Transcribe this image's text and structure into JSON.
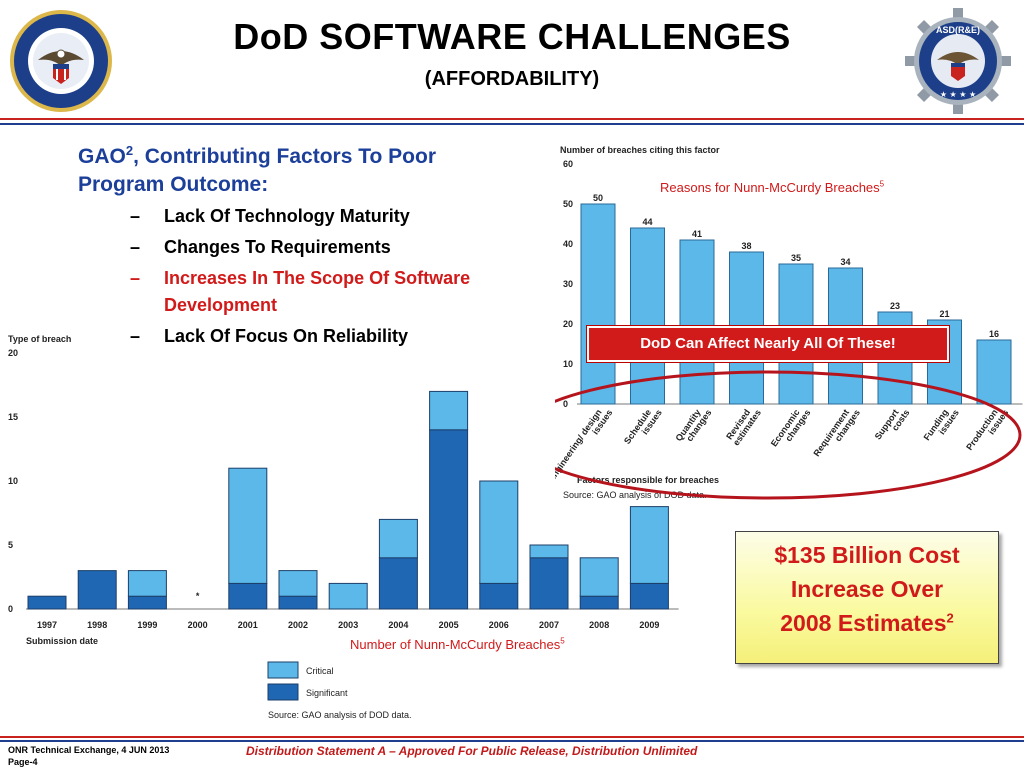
{
  "header": {
    "title": "DoD SOFTWARE CHALLENGES",
    "subtitle": "(AFFORDABILITY)",
    "left_seal": {
      "icon": "dod-seal-icon",
      "text": "DEPARTMENT OF DEFENSE · UNITED STATES OF AMERICA"
    },
    "right_seal": {
      "icon": "asdre-gear-seal-icon",
      "text": "ASD(R&E)"
    }
  },
  "bullets": {
    "main_prefix": "GAO",
    "main_sup": "2",
    "main_rest": ", Contributing Factors To Poor Program Outcome:",
    "items": [
      {
        "text": "Lack Of Technology Maturity",
        "highlight": false
      },
      {
        "text": "Changes To Requirements",
        "highlight": false
      },
      {
        "text": "Increases In The Scope Of Software Development",
        "highlight": true
      },
      {
        "text": "Lack Of Focus On Reliability",
        "highlight": false
      }
    ],
    "dash": "–"
  },
  "chart_data": [
    {
      "type": "bar",
      "ylabel": "Number of breaches citing this factor",
      "xlabel": "Factors responsible for breaches",
      "source": "Source: GAO analysis of DOD data.",
      "annotation": "Reasons for Nunn-McCurdy Breaches",
      "annotation_sup": "5",
      "ylim": [
        0,
        60
      ],
      "yticks": [
        "0",
        "10",
        "20",
        "30",
        "40",
        "50",
        "60"
      ],
      "categories": [
        "Engineering/ design issues",
        "Schedule issues",
        "Quantity changes",
        "Revised estimates",
        "Economic changes",
        "Requirement changes",
        "Support costs",
        "Funding issues",
        "Production issues"
      ],
      "values": [
        50,
        44,
        41,
        38,
        35,
        34,
        23,
        21,
        16
      ],
      "color": "#5bb8e8"
    },
    {
      "type": "bar",
      "stacked": true,
      "ylabel": "Type of breach",
      "xlabel": "Submission date",
      "source": "Source: GAO analysis of DOD data.",
      "annotation": "Number of Nunn-McCurdy Breaches",
      "annotation_sup": "5",
      "ylim": [
        0,
        20
      ],
      "yticks": [
        "0",
        "5",
        "10",
        "15",
        "20"
      ],
      "categories": [
        "1997",
        "1998",
        "1999",
        "2000",
        "2001",
        "2002",
        "2003",
        "2004",
        "2005",
        "2006",
        "2007",
        "2008",
        "2009"
      ],
      "no_data_marker": {
        "category": "2000",
        "symbol": "*"
      },
      "series": [
        {
          "name": "Significant",
          "values": [
            1,
            3,
            1,
            0,
            2,
            1,
            0,
            4,
            14,
            2,
            4,
            1,
            2
          ],
          "color": "#1f66b3"
        },
        {
          "name": "Critical",
          "values": [
            0,
            0,
            2,
            0,
            9,
            2,
            2,
            3,
            3,
            8,
            1,
            3,
            6
          ],
          "color": "#5bb8e8"
        }
      ],
      "legend": {
        "placement": "bottom-center",
        "items": [
          "Critical",
          "Significant"
        ]
      }
    }
  ],
  "callouts": {
    "affect": "DoD Can Affect Nearly All Of These!",
    "cost_lines": [
      "$135 Billion Cost",
      "Increase Over",
      "2008 Estimates"
    ],
    "cost_sup": "2"
  },
  "footer": {
    "left_line1": "ONR Technical  Exchange, 4 JUN 2013",
    "left_line2": "Page-4",
    "center": "Distribution Statement A – Approved For Public Release, Distribution Unlimited"
  },
  "colors": {
    "title": "#000000",
    "heading_blue": "#1c3f9a",
    "accent_red": "#d11a1a",
    "rule_red": "#c8231f",
    "rule_blue": "#1f3e8f"
  }
}
